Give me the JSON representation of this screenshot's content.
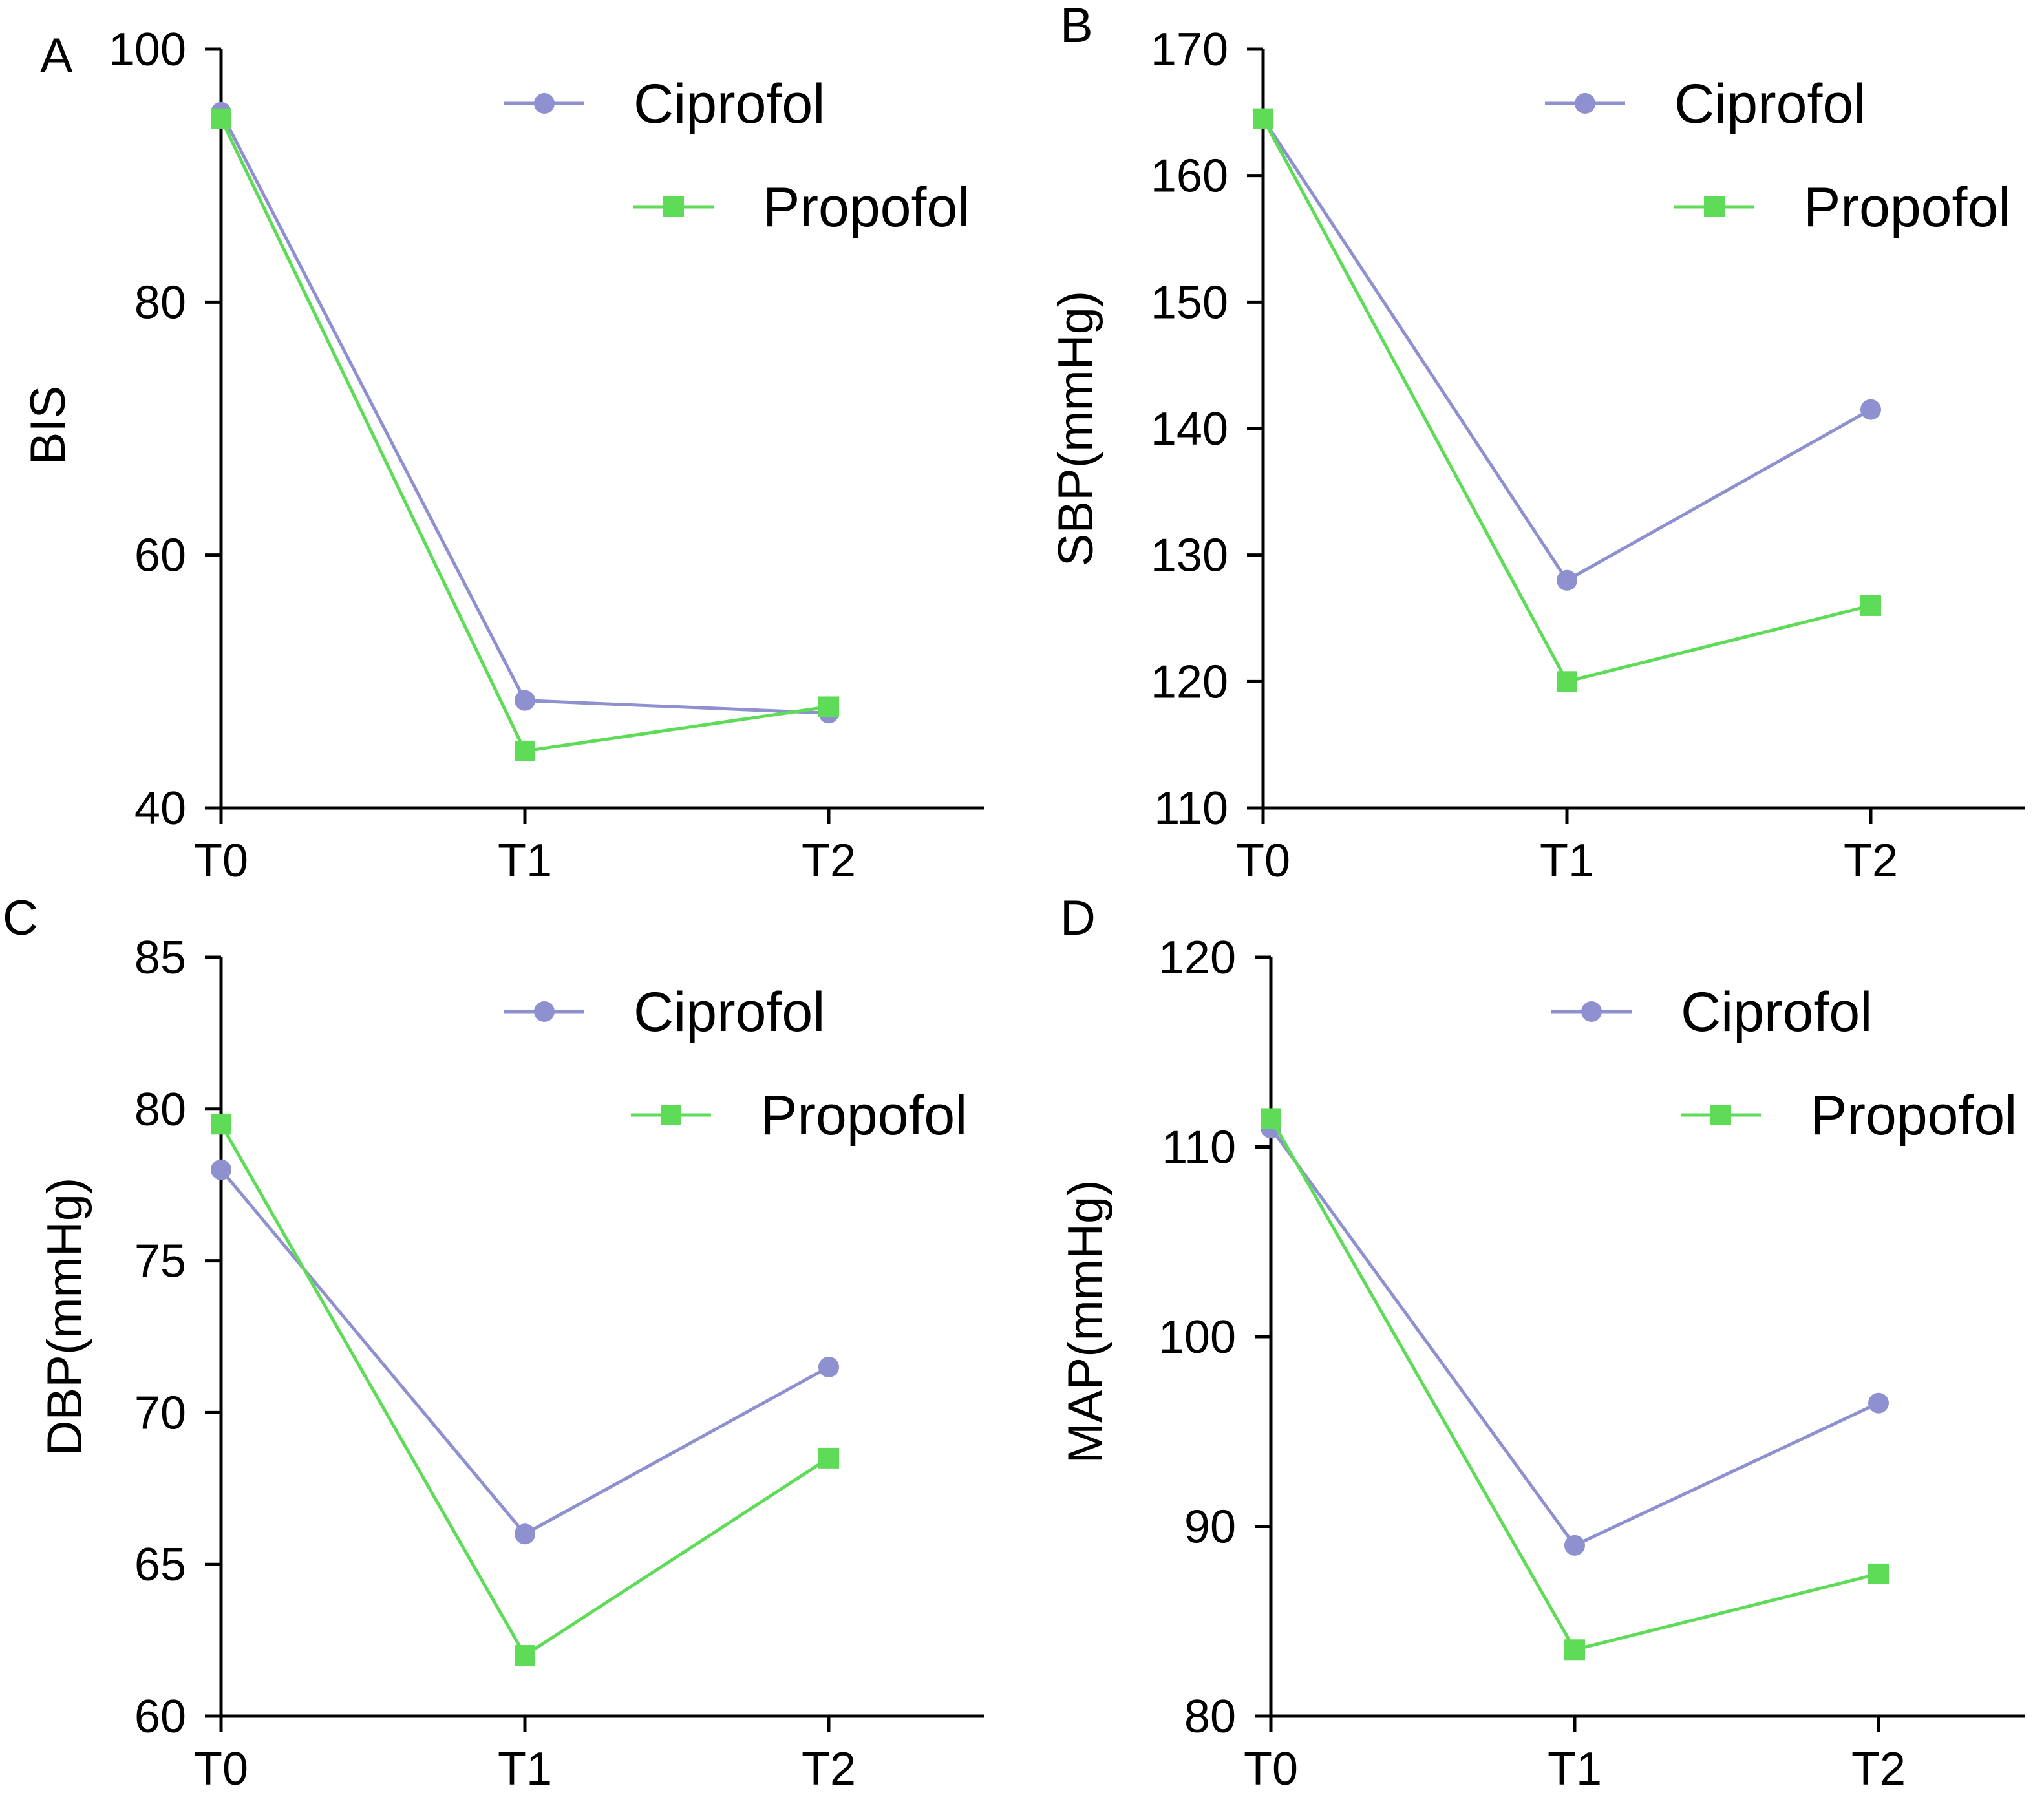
{
  "colors": {
    "ciprofol": "#8E90D0",
    "propofol": "#5EDB57"
  },
  "legend": {
    "ciprofol": "Ciprofol",
    "propofol": "Propofol"
  },
  "chart_data": [
    {
      "type": "line",
      "panel_label": "A",
      "categories": [
        "T0",
        "T1",
        "T2"
      ],
      "ylabel": "BIS",
      "xlabel": "",
      "ylim": [
        40,
        100
      ],
      "yticks": [
        40,
        60,
        80,
        100
      ],
      "series": [
        {
          "name": "Ciprofol",
          "marker": "circle",
          "values": [
            95,
            48.5,
            47.5
          ]
        },
        {
          "name": "Propofol",
          "marker": "square",
          "values": [
            94.5,
            44.5,
            48
          ]
        }
      ]
    },
    {
      "type": "line",
      "panel_label": "B",
      "categories": [
        "T0",
        "T1",
        "T2"
      ],
      "ylabel": "SBP(mmHg)",
      "xlabel": "",
      "ylim": [
        110,
        170
      ],
      "yticks": [
        110,
        120,
        130,
        140,
        150,
        160,
        170
      ],
      "series": [
        {
          "name": "Ciprofol",
          "marker": "circle",
          "values": [
            164.5,
            128,
            141.5
          ]
        },
        {
          "name": "Propofol",
          "marker": "square",
          "values": [
            164.5,
            120,
            126
          ]
        }
      ]
    },
    {
      "type": "line",
      "panel_label": "C",
      "categories": [
        "T0",
        "T1",
        "T2"
      ],
      "ylabel": "DBP(mmHg)",
      "xlabel": "",
      "ylim": [
        60,
        85
      ],
      "yticks": [
        60,
        65,
        70,
        75,
        80,
        85
      ],
      "series": [
        {
          "name": "Ciprofol",
          "marker": "circle",
          "values": [
            78,
            66,
            71.5
          ]
        },
        {
          "name": "Propofol",
          "marker": "square",
          "values": [
            79.5,
            62,
            68.5
          ]
        }
      ]
    },
    {
      "type": "line",
      "panel_label": "D",
      "categories": [
        "T0",
        "T1",
        "T2"
      ],
      "ylabel": "MAP(mmHg)",
      "xlabel": "",
      "ylim": [
        80,
        120
      ],
      "yticks": [
        80,
        90,
        100,
        110,
        120
      ],
      "series": [
        {
          "name": "Ciprofol",
          "marker": "circle",
          "values": [
            111,
            89,
            96.5
          ]
        },
        {
          "name": "Propofol",
          "marker": "square",
          "values": [
            111.5,
            83.5,
            87.5
          ]
        }
      ]
    }
  ]
}
